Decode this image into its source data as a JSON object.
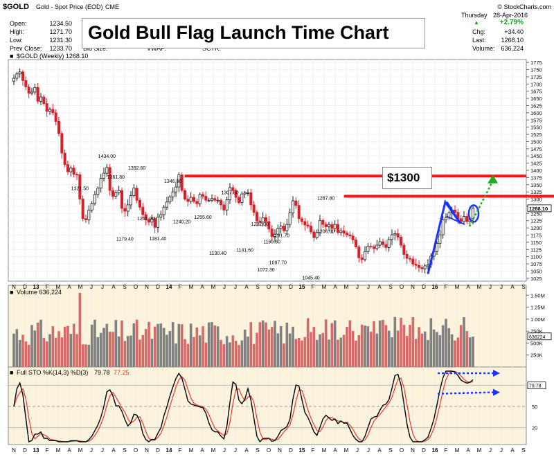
{
  "symbol_header": {
    "symbol": "$GOLD",
    "description": "Gold - Spot Price (EOD)",
    "exchange": "CME",
    "watermark": "© StockCharts.com"
  },
  "stats": {
    "open_label": "Open:",
    "open": "1234.50",
    "high_label": "High:",
    "high": "1271.70",
    "low_label": "Low:",
    "low": "1231.30",
    "prev_close_label": "Prev Close:",
    "prev_close": "1233.70",
    "bid_size_label": "Bid Size:",
    "vwap_label": "VWAP:",
    "sctr_label": "SCTR:"
  },
  "quote": {
    "day": "Thursday",
    "date": "28-Apr-2016",
    "pct_change": "+2.79%",
    "chg_label": "Chg:",
    "chg": "+34.40",
    "last_label": "Last:",
    "last": "1268.10",
    "volume_label": "Volume:",
    "volume": "636,224"
  },
  "title": "Gold Bull Flag Launch Time Chart",
  "callout": "$1300",
  "price_panel_legend": "$GOLD (Weekly) 1268.10",
  "volume_panel_legend": "Volume 636,224",
  "stoch_panel_legend_prefix": "Full STO %K(14,3) %D(3)",
  "stoch_k_value": "79.78",
  "stoch_d_value": "77.25",
  "colors": {
    "up_bar": "#1a1a1a",
    "down_bar": "#d9202a",
    "resistance": "#ff1111",
    "flagpole": "#1a33ff",
    "projection": "#22aa22",
    "stoch_k": "#000000",
    "stoch_d": "#ee3333",
    "panel_bg": "#fbf3dc",
    "volume_up": "#808080",
    "volume_down": "#d66a6a"
  },
  "chart_data": {
    "type": "candlestick",
    "frequency": "weekly",
    "x_axis_months": [
      "N",
      "D",
      "13",
      "F",
      "M",
      "A",
      "M",
      "J",
      "J",
      "A",
      "S",
      "O",
      "N",
      "D",
      "14",
      "F",
      "M",
      "A",
      "M",
      "J",
      "J",
      "A",
      "S",
      "O",
      "N",
      "D",
      "15",
      "F",
      "M",
      "A",
      "M",
      "J",
      "J",
      "A",
      "S",
      "O",
      "N",
      "D",
      "16",
      "F",
      "M",
      "A",
      "M",
      "J",
      "J",
      "A",
      "S"
    ],
    "y_axis_ticks": [
      1025,
      1050,
      1075,
      1100,
      1125,
      1150,
      1175,
      1200,
      1225,
      1250,
      1275,
      1300,
      1325,
      1350,
      1375,
      1400,
      1425,
      1450,
      1475,
      1500,
      1525,
      1550,
      1575,
      1600,
      1625,
      1650,
      1675,
      1700,
      1725,
      1750,
      1775
    ],
    "ylim": [
      1015,
      1785
    ],
    "last_price_label": "1268.10",
    "price_annotations": [
      {
        "label": "1321.50",
        "price": 1321.5
      },
      {
        "label": "1434.00",
        "price": 1434.0
      },
      {
        "label": "1179.40",
        "price": 1179.4
      },
      {
        "label": "1361.80",
        "price": 1361.8
      },
      {
        "label": "1251.00",
        "price": 1251.0
      },
      {
        "label": "1392.60",
        "price": 1392.6
      },
      {
        "label": "1181.40",
        "price": 1181.4
      },
      {
        "label": "1346.80",
        "price": 1346.8
      },
      {
        "label": "1240.20",
        "price": 1240.2
      },
      {
        "label": "1255.60",
        "price": 1255.6
      },
      {
        "label": "1130.40",
        "price": 1130.4
      },
      {
        "label": "1307.80",
        "price": 1307.8
      },
      {
        "label": "1141.60",
        "price": 1141.6
      },
      {
        "label": "1232.00",
        "price": 1232.0
      },
      {
        "label": "1169.80",
        "price": 1169.8
      },
      {
        "label": "1191.70",
        "price": 1191.7
      },
      {
        "label": "1072.30",
        "price": 1072.3
      },
      {
        "label": "1097.70",
        "price": 1097.7
      },
      {
        "label": "1045.40",
        "price": 1045.4
      },
      {
        "label": "1287.80",
        "price": 1287.8
      },
      {
        "label": "1206.00",
        "price": 1206.0
      }
    ],
    "resistance_levels": [
      1380,
      1310
    ],
    "weekly_closes": [
      1720,
      1735,
      1742,
      1712,
      1690,
      1668,
      1672,
      1688,
      1640,
      1655,
      1632,
      1605,
      1612,
      1600,
      1570,
      1528,
      1460,
      1420,
      1395,
      1408,
      1386,
      1385,
      1300,
      1232,
      1228,
      1262,
      1285,
      1316,
      1338,
      1372,
      1390,
      1410,
      1330,
      1310,
      1322,
      1330,
      1268,
      1258,
      1280,
      1312,
      1338,
      1296,
      1272,
      1246,
      1228,
      1220,
      1232,
      1202,
      1238,
      1246,
      1272,
      1290,
      1308,
      1325,
      1342,
      1384,
      1330,
      1300,
      1292,
      1306,
      1292,
      1284,
      1316,
      1310,
      1296,
      1296,
      1302,
      1296,
      1296,
      1280,
      1262,
      1298,
      1340,
      1330,
      1306,
      1288,
      1318,
      1322,
      1322,
      1280,
      1254,
      1224,
      1220,
      1236,
      1222,
      1196,
      1170,
      1178,
      1198,
      1206,
      1190,
      1212,
      1252,
      1294,
      1278,
      1232,
      1222,
      1210,
      1206,
      1186,
      1166,
      1184,
      1226,
      1212,
      1204,
      1212,
      1198,
      1212,
      1184,
      1190,
      1182,
      1176,
      1172,
      1158,
      1134,
      1096,
      1090,
      1118,
      1136,
      1134,
      1128,
      1140,
      1152,
      1142,
      1132,
      1160,
      1176,
      1180,
      1168,
      1140,
      1108,
      1094,
      1092,
      1074,
      1070,
      1062,
      1058,
      1068,
      1072,
      1102,
      1118,
      1146,
      1176,
      1228,
      1236,
      1252,
      1262,
      1254,
      1232,
      1222,
      1240,
      1222,
      1232,
      1268
    ],
    "volume_ticks": [
      "250K",
      "500K",
      "750K",
      "1.00M",
      "1.25M",
      "1.50M"
    ],
    "volume_last_label": "636224",
    "stoch_ticks": [
      20,
      50,
      80
    ],
    "stoch_last_label": "79.78"
  }
}
